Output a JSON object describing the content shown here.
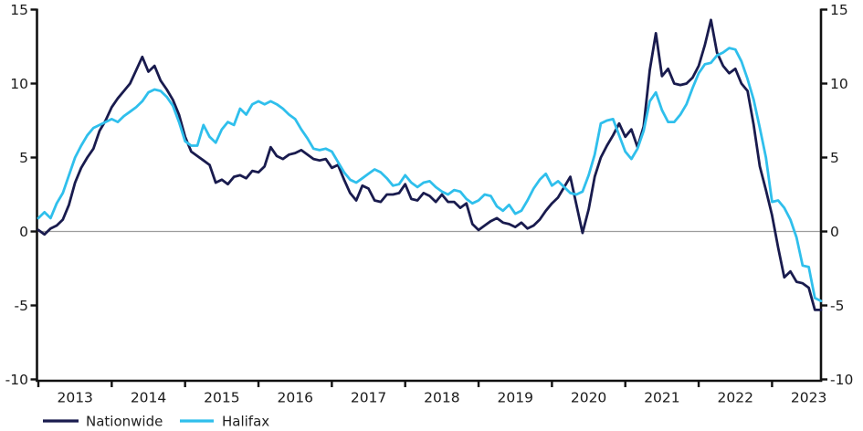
{
  "page": {
    "background": "#ffffff",
    "title": ""
  },
  "colors": {
    "axis": "#111111",
    "tick_label": "#1a1a1a",
    "zero_line": "#9d9d9d",
    "nationwide": "#191b4e",
    "halifax": "#2fbfec"
  },
  "chart_data": {
    "type": "line",
    "title": "",
    "xlabel": "",
    "ylabel": "",
    "frequency": "monthly",
    "x_start": "2013-01",
    "x_end": "2023-09",
    "x_axis": {
      "tick_labels": [
        "2013",
        "2014",
        "2015",
        "2016",
        "2017",
        "2018",
        "2019",
        "2020",
        "2021",
        "2022",
        "2023"
      ]
    },
    "y_axis": {
      "ticks": [
        15,
        10,
        5,
        0,
        -5,
        -10
      ],
      "range": [
        -10,
        15
      ],
      "sides": "both",
      "zero_line": true,
      "grid": false
    },
    "legend_position": "bottom-left",
    "legend": [
      {
        "label": "Nationwide",
        "color": "#191b4e"
      },
      {
        "label": "Halifax",
        "color": "#2fbfec"
      }
    ],
    "series": [
      {
        "name": "Nationwide",
        "color": "#191b4e",
        "values": [
          0.1,
          -0.2,
          0.2,
          0.4,
          0.8,
          1.8,
          3.3,
          4.3,
          5.0,
          5.6,
          6.8,
          7.5,
          8.4,
          9.0,
          9.5,
          10.0,
          10.9,
          11.8,
          10.8,
          11.2,
          10.2,
          9.6,
          8.9,
          7.9,
          6.4,
          5.4,
          5.1,
          4.8,
          4.5,
          3.3,
          3.5,
          3.2,
          3.7,
          3.8,
          3.6,
          4.1,
          4.0,
          4.4,
          5.7,
          5.1,
          4.9,
          5.2,
          5.3,
          5.5,
          5.2,
          4.9,
          4.8,
          4.9,
          4.3,
          4.5,
          3.5,
          2.6,
          2.1,
          3.1,
          2.9,
          2.1,
          2.0,
          2.5,
          2.5,
          2.6,
          3.2,
          2.2,
          2.1,
          2.6,
          2.4,
          2.0,
          2.5,
          2.0,
          2.0,
          1.6,
          1.9,
          0.5,
          0.1,
          0.4,
          0.7,
          0.9,
          0.6,
          0.5,
          0.3,
          0.6,
          0.2,
          0.4,
          0.8,
          1.4,
          1.9,
          2.3,
          3.0,
          3.7,
          1.8,
          -0.1,
          1.5,
          3.7,
          5.0,
          5.8,
          6.5,
          7.3,
          6.4,
          6.9,
          5.7,
          7.1,
          10.9,
          13.4,
          10.5,
          11.0,
          10.0,
          9.9,
          10.0,
          10.4,
          11.2,
          12.6,
          14.3,
          12.1,
          11.2,
          10.7,
          11.0,
          10.0,
          9.5,
          7.2,
          4.4,
          2.8,
          1.1,
          -1.1,
          -3.1,
          -2.7,
          -3.4,
          -3.5,
          -3.8,
          -5.3,
          -5.3
        ]
      },
      {
        "name": "Halifax",
        "color": "#2fbfec",
        "values": [
          0.9,
          1.3,
          0.9,
          1.9,
          2.6,
          3.8,
          5.0,
          5.8,
          6.5,
          7.0,
          7.2,
          7.4,
          7.6,
          7.4,
          7.8,
          8.1,
          8.4,
          8.8,
          9.4,
          9.6,
          9.5,
          9.1,
          8.5,
          7.4,
          6.1,
          5.8,
          5.8,
          7.2,
          6.4,
          6.0,
          6.9,
          7.4,
          7.2,
          8.3,
          7.9,
          8.6,
          8.8,
          8.6,
          8.8,
          8.6,
          8.3,
          7.9,
          7.6,
          6.9,
          6.3,
          5.6,
          5.5,
          5.6,
          5.4,
          4.7,
          4.0,
          3.5,
          3.3,
          3.6,
          3.9,
          4.2,
          4.0,
          3.6,
          3.1,
          3.2,
          3.8,
          3.3,
          3.0,
          3.3,
          3.4,
          3.0,
          2.7,
          2.5,
          2.8,
          2.7,
          2.2,
          1.9,
          2.1,
          2.5,
          2.4,
          1.7,
          1.4,
          1.8,
          1.2,
          1.4,
          2.1,
          2.9,
          3.5,
          3.9,
          3.1,
          3.4,
          3.0,
          2.6,
          2.5,
          2.7,
          3.8,
          5.2,
          7.3,
          7.5,
          7.6,
          6.5,
          5.4,
          4.9,
          5.6,
          6.8,
          8.8,
          9.4,
          8.2,
          7.4,
          7.4,
          7.9,
          8.6,
          9.7,
          10.7,
          11.3,
          11.4,
          11.9,
          12.1,
          12.4,
          12.3,
          11.5,
          10.3,
          8.9,
          7.0,
          5.0,
          2.0,
          2.1,
          1.6,
          0.8,
          -0.4,
          -2.3,
          -2.4,
          -4.5,
          -4.7
        ]
      }
    ]
  }
}
